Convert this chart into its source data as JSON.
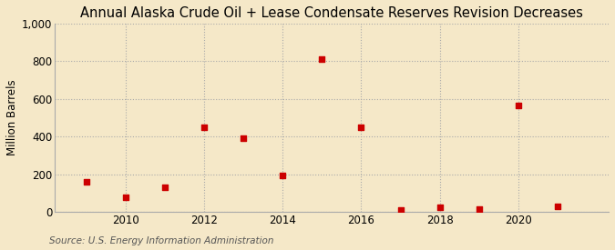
{
  "title": "Annual Alaska Crude Oil + Lease Condensate Reserves Revision Decreases",
  "ylabel": "Million Barrels",
  "source": "Source: U.S. Energy Information Administration",
  "background_color": "#f5e8c8",
  "plot_bg_color": "#f5e8c8",
  "years": [
    2009,
    2010,
    2011,
    2012,
    2013,
    2014,
    2015,
    2016,
    2017,
    2018,
    2019,
    2020,
    2021
  ],
  "values": [
    160,
    75,
    130,
    450,
    390,
    195,
    810,
    450,
    10,
    25,
    15,
    565,
    30
  ],
  "marker_color": "#cc0000",
  "marker": "s",
  "marker_size": 4,
  "ylim": [
    0,
    1000
  ],
  "yticks": [
    0,
    200,
    400,
    600,
    800,
    1000
  ],
  "ytick_labels": [
    "0",
    "200",
    "400",
    "600",
    "800",
    "1,000"
  ],
  "xlim": [
    2008.2,
    2022.3
  ],
  "xticks": [
    2010,
    2012,
    2014,
    2016,
    2018,
    2020
  ],
  "grid_color": "#aaaaaa",
  "grid_linestyle": ":",
  "title_fontsize": 10.5,
  "axis_label_fontsize": 8.5,
  "tick_fontsize": 8.5,
  "source_fontsize": 7.5
}
